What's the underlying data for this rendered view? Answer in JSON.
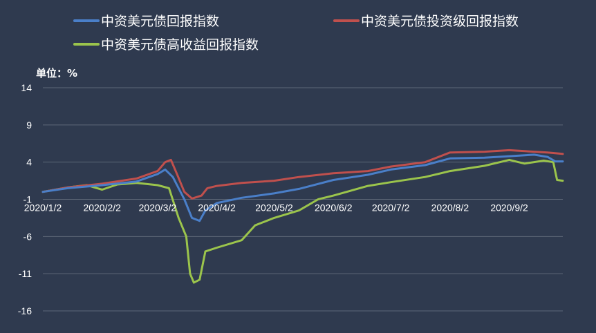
{
  "chart_data": {
    "type": "line",
    "title": "",
    "unit_label": "单位：%",
    "xlabel": "",
    "ylabel": "",
    "ylim": [
      -16,
      14
    ],
    "y_ticks": [
      "14",
      "9",
      "4",
      "-1",
      "-6",
      "-11",
      "-16"
    ],
    "x_ticks": [
      "2020/1/2",
      "2020/2/2",
      "2020/3/2",
      "2020/4/2",
      "2020/5/2",
      "2020/6/2",
      "2020/7/2",
      "2020/8/2",
      "2020/9/2"
    ],
    "grid": true,
    "legend_position": "top",
    "series": [
      {
        "name": "中资美元债回报指数",
        "color": "#4a7fc9",
        "points": [
          [
            "2020/1/2",
            0.0
          ],
          [
            "2020/1/15",
            0.5
          ],
          [
            "2020/2/2",
            0.9
          ],
          [
            "2020/2/20",
            1.4
          ],
          [
            "2020/3/2",
            2.4
          ],
          [
            "2020/3/6",
            3.0
          ],
          [
            "2020/3/10",
            2.0
          ],
          [
            "2020/3/16",
            -1.0
          ],
          [
            "2020/3/20",
            -3.5
          ],
          [
            "2020/3/24",
            -3.9
          ],
          [
            "2020/3/27",
            -2.5
          ],
          [
            "2020/4/2",
            -1.5
          ],
          [
            "2020/4/15",
            -0.8
          ],
          [
            "2020/5/2",
            -0.2
          ],
          [
            "2020/5/15",
            0.4
          ],
          [
            "2020/6/2",
            1.6
          ],
          [
            "2020/6/20",
            2.3
          ],
          [
            "2020/7/2",
            3.0
          ],
          [
            "2020/7/20",
            3.6
          ],
          [
            "2020/8/2",
            4.5
          ],
          [
            "2020/8/20",
            4.6
          ],
          [
            "2020/9/2",
            4.8
          ],
          [
            "2020/9/15",
            5.0
          ],
          [
            "2020/9/22",
            4.7
          ],
          [
            "2020/9/26",
            4.1
          ],
          [
            "2020/9/30",
            4.1
          ]
        ]
      },
      {
        "name": "中资美元债投资级回报指数",
        "color": "#c0504d",
        "points": [
          [
            "2020/1/2",
            0.0
          ],
          [
            "2020/1/15",
            0.6
          ],
          [
            "2020/2/2",
            1.1
          ],
          [
            "2020/2/20",
            1.8
          ],
          [
            "2020/3/2",
            2.8
          ],
          [
            "2020/3/6",
            4.0
          ],
          [
            "2020/3/9",
            4.3
          ],
          [
            "2020/3/12",
            2.5
          ],
          [
            "2020/3/16",
            0.0
          ],
          [
            "2020/3/20",
            -0.9
          ],
          [
            "2020/3/25",
            -0.5
          ],
          [
            "2020/3/28",
            0.5
          ],
          [
            "2020/4/2",
            0.8
          ],
          [
            "2020/4/15",
            1.2
          ],
          [
            "2020/5/2",
            1.5
          ],
          [
            "2020/5/15",
            2.0
          ],
          [
            "2020/6/2",
            2.5
          ],
          [
            "2020/6/20",
            2.8
          ],
          [
            "2020/7/2",
            3.4
          ],
          [
            "2020/7/20",
            4.0
          ],
          [
            "2020/8/2",
            5.3
          ],
          [
            "2020/8/20",
            5.4
          ],
          [
            "2020/9/2",
            5.6
          ],
          [
            "2020/9/15",
            5.4
          ],
          [
            "2020/9/22",
            5.3
          ],
          [
            "2020/9/30",
            5.1
          ]
        ]
      },
      {
        "name": "中资美元债高收益回报指数",
        "color": "#9bc44c",
        "points": [
          [
            "2020/1/2",
            0.0
          ],
          [
            "2020/1/15",
            0.6
          ],
          [
            "2020/1/25",
            0.9
          ],
          [
            "2020/2/2",
            0.3
          ],
          [
            "2020/2/10",
            1.0
          ],
          [
            "2020/2/20",
            1.2
          ],
          [
            "2020/3/2",
            0.9
          ],
          [
            "2020/3/8",
            0.5
          ],
          [
            "2020/3/13",
            -3.5
          ],
          [
            "2020/3/17",
            -6.0
          ],
          [
            "2020/3/19",
            -11.0
          ],
          [
            "2020/3/21",
            -12.2
          ],
          [
            "2020/3/24",
            -11.8
          ],
          [
            "2020/3/27",
            -8.0
          ],
          [
            "2020/4/2",
            -7.5
          ],
          [
            "2020/4/15",
            -6.5
          ],
          [
            "2020/4/22",
            -4.5
          ],
          [
            "2020/5/2",
            -3.5
          ],
          [
            "2020/5/15",
            -2.5
          ],
          [
            "2020/5/25",
            -1.0
          ],
          [
            "2020/6/2",
            -0.5
          ],
          [
            "2020/6/20",
            0.8
          ],
          [
            "2020/7/2",
            1.3
          ],
          [
            "2020/7/20",
            2.0
          ],
          [
            "2020/8/2",
            2.8
          ],
          [
            "2020/8/20",
            3.5
          ],
          [
            "2020/9/2",
            4.3
          ],
          [
            "2020/9/10",
            3.8
          ],
          [
            "2020/9/20",
            4.2
          ],
          [
            "2020/9/25",
            4.0
          ],
          [
            "2020/9/27",
            1.6
          ],
          [
            "2020/9/30",
            1.5
          ]
        ]
      }
    ]
  }
}
